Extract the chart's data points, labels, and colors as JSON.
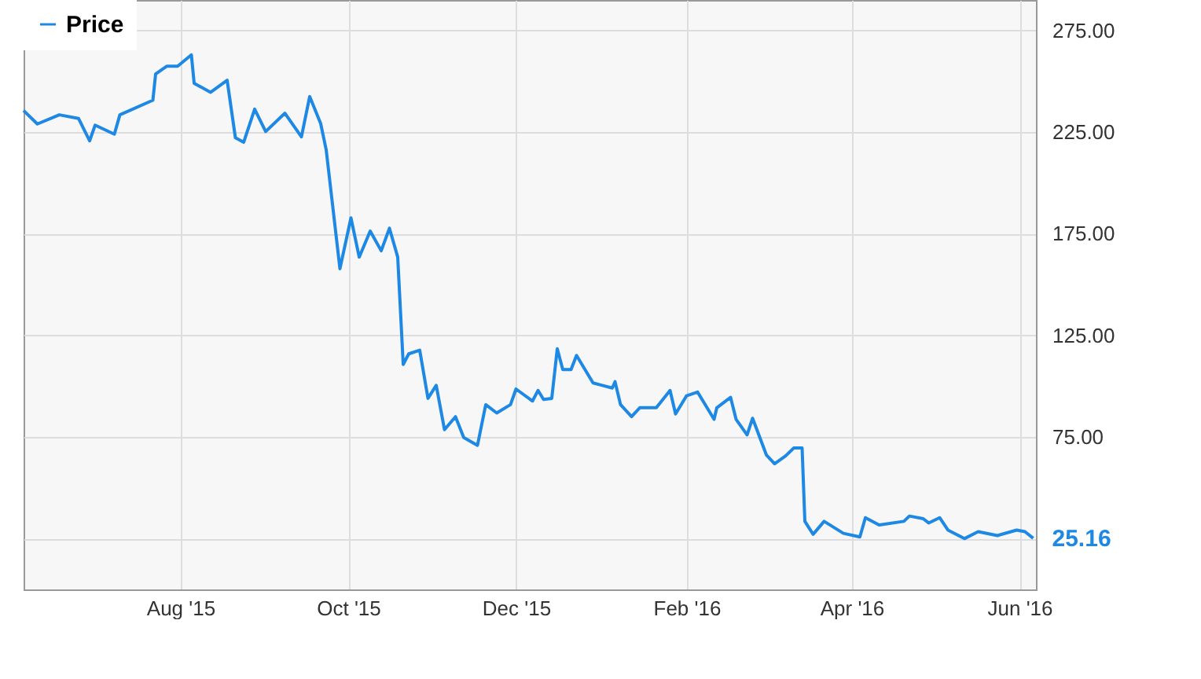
{
  "chart_data": {
    "type": "line",
    "x": [
      "2015-06-05",
      "2015-06-10",
      "2015-06-18",
      "2015-06-25",
      "2015-06-29",
      "2015-07-01",
      "2015-07-08",
      "2015-07-10",
      "2015-07-22",
      "2015-07-23",
      "2015-07-27",
      "2015-07-31",
      "2015-08-05",
      "2015-08-06",
      "2015-08-12",
      "2015-08-18",
      "2015-08-21",
      "2015-08-24",
      "2015-08-28",
      "2015-09-01",
      "2015-09-08",
      "2015-09-14",
      "2015-09-17",
      "2015-09-21",
      "2015-09-23",
      "2015-09-28",
      "2015-10-02",
      "2015-10-05",
      "2015-10-09",
      "2015-10-13",
      "2015-10-16",
      "2015-10-19",
      "2015-10-21",
      "2015-10-23",
      "2015-10-27",
      "2015-10-30",
      "2015-11-02",
      "2015-11-05",
      "2015-11-09",
      "2015-11-12",
      "2015-11-17",
      "2015-11-20",
      "2015-11-24",
      "2015-11-29",
      "2015-12-01",
      "2015-12-07",
      "2015-12-09",
      "2015-12-11",
      "2015-12-14",
      "2015-12-16",
      "2015-12-18",
      "2015-12-21",
      "2015-12-23",
      "2015-12-29",
      "2016-01-05",
      "2016-01-06",
      "2016-01-08",
      "2016-01-12",
      "2016-01-15",
      "2016-01-21",
      "2016-01-26",
      "2016-01-28",
      "2016-02-01",
      "2016-02-05",
      "2016-02-11",
      "2016-02-12",
      "2016-02-17",
      "2016-02-19",
      "2016-02-23",
      "2016-02-25",
      "2016-03-01",
      "2016-03-04",
      "2016-03-08",
      "2016-03-11",
      "2016-03-14",
      "2016-03-15",
      "2016-03-18",
      "2016-03-22",
      "2016-03-29",
      "2016-04-04",
      "2016-04-06",
      "2016-04-11",
      "2016-04-20",
      "2016-04-22",
      "2016-04-27",
      "2016-04-29",
      "2016-05-03",
      "2016-05-06",
      "2016-05-12",
      "2016-05-17",
      "2016-05-24",
      "2016-05-31",
      "2016-06-03",
      "2016-06-06"
    ],
    "series": [
      {
        "name": "Price",
        "color": "#1e88e5",
        "values": [
          235.6,
          229,
          233.5,
          231.7,
          220.7,
          228.4,
          224,
          233.5,
          240.7,
          253.6,
          257.4,
          257.4,
          263,
          249,
          244.6,
          250.5,
          222.2,
          220,
          236.3,
          225.3,
          234.3,
          222.7,
          242.5,
          229.2,
          216.3,
          157.8,
          182.8,
          163.5,
          176.3,
          166.6,
          177.7,
          163.5,
          110.7,
          115.9,
          117.7,
          94,
          100.4,
          78.6,
          85,
          74.7,
          70.9,
          90.9,
          86.8,
          90.9,
          98.6,
          92.7,
          97.9,
          93.5,
          94,
          118.4,
          108.2,
          108.2,
          115.1,
          101.6,
          99.1,
          102.2,
          90.9,
          85,
          89.4,
          89.4,
          97.9,
          86.3,
          95.3,
          97.1,
          83.7,
          89.4,
          94.5,
          83.7,
          76,
          84.2,
          66.2,
          61.8,
          65.7,
          69.6,
          69.6,
          33.5,
          27.1,
          33.5,
          27.6,
          25.8,
          35.3,
          31.7,
          33.5,
          36.1,
          34.8,
          32.7,
          35.3,
          29.2,
          25,
          28.4,
          26.5,
          29.2,
          28.4,
          25.16
        ]
      }
    ],
    "xlim": [
      "2015-06-05",
      "2016-06-07"
    ],
    "xticks": [
      {
        "value": "2015-08-01",
        "label": "Aug '15"
      },
      {
        "value": "2015-10-01",
        "label": "Oct '15"
      },
      {
        "value": "2015-12-01",
        "label": "Dec '15"
      },
      {
        "value": "2016-02-01",
        "label": "Feb '16"
      },
      {
        "value": "2016-04-01",
        "label": "Apr '16"
      },
      {
        "value": "2016-06-01",
        "label": "Jun '16"
      }
    ],
    "ylim": [
      0,
      290
    ],
    "yticks": [
      {
        "value": 25,
        "label": null
      },
      {
        "value": 75,
        "label": "75.00"
      },
      {
        "value": 125,
        "label": "125.00"
      },
      {
        "value": 175,
        "label": "175.00"
      },
      {
        "value": 225,
        "label": "225.00"
      },
      {
        "value": 275,
        "label": "275.00"
      }
    ],
    "annotations": [
      {
        "text": "25.16",
        "x": "2016-06-06",
        "y": 25.16
      }
    ],
    "grid": true,
    "legend": "top left",
    "line_style": "solid",
    "marker": "none"
  }
}
